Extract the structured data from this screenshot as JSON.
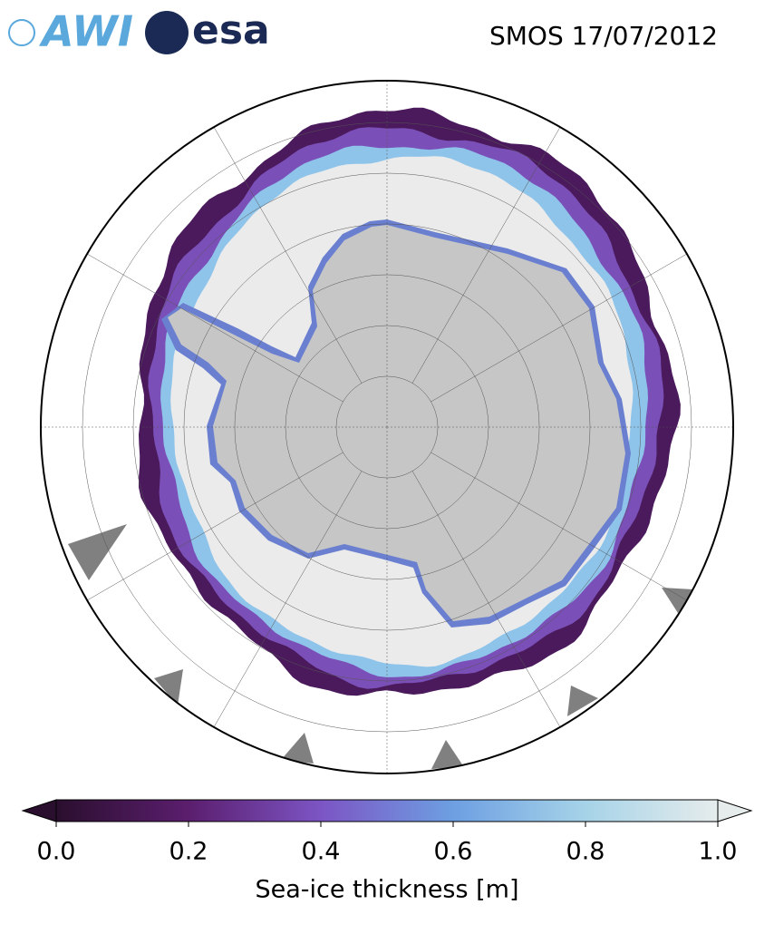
{
  "header": {
    "logos": [
      "AWI",
      "esa"
    ],
    "title": "SMOS 17/07/2012"
  },
  "colorbar": {
    "label": "Sea-ice thickness [m]",
    "lim": [
      0,
      1
    ],
    "ticks": [
      {
        "value": 0,
        "label": "0.0"
      },
      {
        "value": 0.2,
        "label": "0.2"
      },
      {
        "value": 0.4,
        "label": "0.4"
      },
      {
        "value": 0.6,
        "label": "0.6"
      },
      {
        "value": 0.8,
        "label": "0.8"
      },
      {
        "value": 1,
        "label": "1.0"
      }
    ],
    "colormap": [
      "#2a0f2e",
      "#5b1e6e",
      "#7c55c4",
      "#6d9fe2",
      "#a6d3e8",
      "#e6ecec"
    ]
  }
}
